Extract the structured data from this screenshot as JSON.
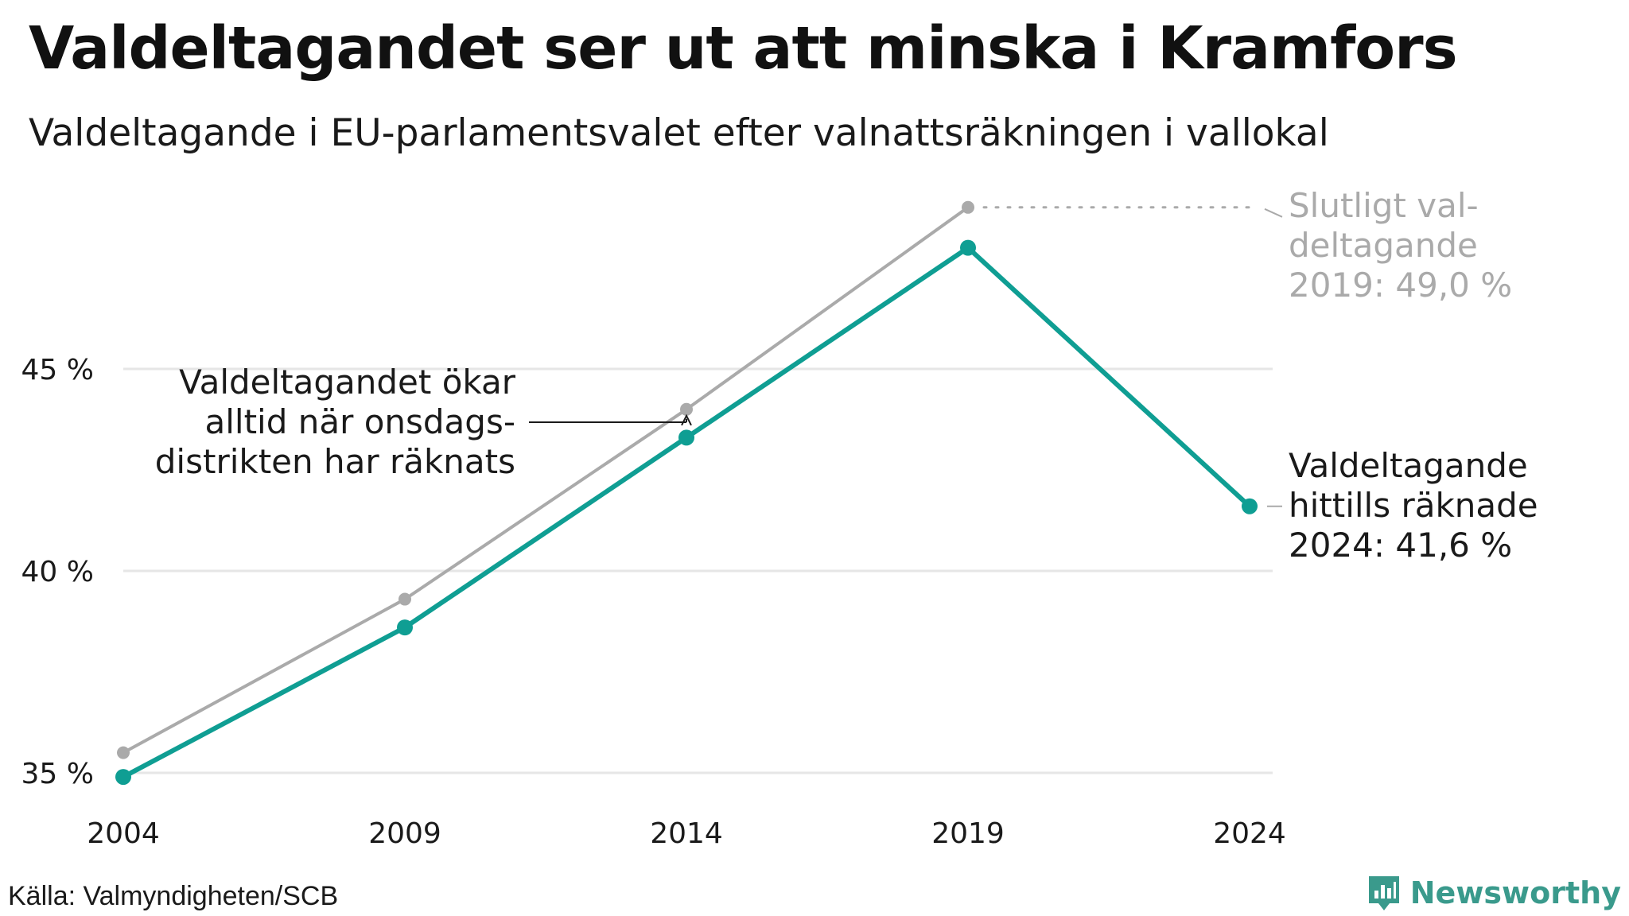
{
  "title": "Valdeltagandet ser ut att minska i Kramfors",
  "subtitle": "Valdeltagande i EU-parlamentsvalet efter valnattsräkningen i vallokal",
  "source": "Källa: Valmyndigheten/SCB",
  "brand": "Newsworthy",
  "colors": {
    "teal": "#0f9e93",
    "gray": "#aaaaaa",
    "grid": "#e6e6e6",
    "text": "#1a1a1a",
    "brand": "#3a9a8c"
  },
  "chart_data": {
    "type": "line",
    "x": [
      "2004",
      "2009",
      "2014",
      "2019",
      "2024"
    ],
    "ylim": [
      35,
      50
    ],
    "y_ticks": [
      35,
      40,
      45
    ],
    "y_tick_labels": [
      "35 %",
      "40 %",
      "45 %"
    ],
    "grid": true,
    "series": [
      {
        "key": "slutligt",
        "color": "#aaaaaa",
        "values": [
          35.5,
          39.3,
          44.0,
          49.0,
          null
        ]
      },
      {
        "key": "valnatt",
        "color": "#0f9e93",
        "values": [
          34.9,
          38.6,
          43.3,
          48.0,
          41.6
        ]
      }
    ],
    "annotations": {
      "final_label": [
        "Slutligt val-",
        "deltagande",
        "2019: 49,0 %"
      ],
      "current_label": [
        "Valdeltagande",
        "hittills räknade",
        "2024: 41,6 %"
      ],
      "note_label": [
        "Valdeltagandet ökar",
        "alltid när onsdags-",
        "distrikten har räknats"
      ]
    }
  }
}
